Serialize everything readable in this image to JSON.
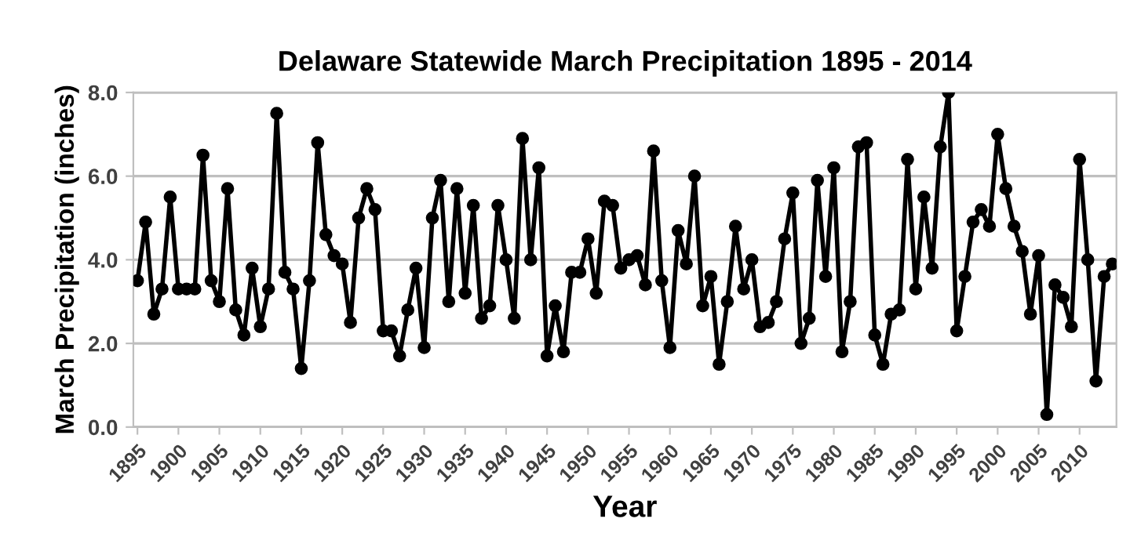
{
  "chart_data": {
    "type": "line",
    "title": "Delaware Statewide March Precipitation 1895 - 2014",
    "xlabel": "Year",
    "ylabel": "March Precipitation (inches)",
    "x": [
      1895,
      1896,
      1897,
      1898,
      1899,
      1900,
      1901,
      1902,
      1903,
      1904,
      1905,
      1906,
      1907,
      1908,
      1909,
      1910,
      1911,
      1912,
      1913,
      1914,
      1915,
      1916,
      1917,
      1918,
      1919,
      1920,
      1921,
      1922,
      1923,
      1924,
      1925,
      1926,
      1927,
      1928,
      1929,
      1930,
      1931,
      1932,
      1933,
      1934,
      1935,
      1936,
      1937,
      1938,
      1939,
      1940,
      1941,
      1942,
      1943,
      1944,
      1945,
      1946,
      1947,
      1948,
      1949,
      1950,
      1951,
      1952,
      1953,
      1954,
      1955,
      1956,
      1957,
      1958,
      1959,
      1960,
      1961,
      1962,
      1963,
      1964,
      1965,
      1966,
      1967,
      1968,
      1969,
      1970,
      1971,
      1972,
      1973,
      1974,
      1975,
      1976,
      1977,
      1978,
      1979,
      1980,
      1981,
      1982,
      1983,
      1984,
      1985,
      1986,
      1987,
      1988,
      1989,
      1990,
      1991,
      1992,
      1993,
      1994,
      1995,
      1996,
      1997,
      1998,
      1999,
      2000,
      2001,
      2002,
      2003,
      2004,
      2005,
      2006,
      2007,
      2008,
      2009,
      2010,
      2011,
      2012,
      2013,
      2014
    ],
    "series": [
      {
        "color": "#000000",
        "values": [
          3.5,
          4.9,
          2.7,
          3.3,
          5.5,
          3.3,
          3.3,
          3.3,
          6.5,
          3.5,
          3.0,
          5.7,
          2.8,
          2.2,
          3.8,
          2.4,
          3.3,
          7.5,
          3.7,
          3.3,
          1.4,
          3.5,
          6.8,
          4.6,
          4.1,
          3.9,
          2.5,
          5.0,
          5.7,
          5.2,
          2.3,
          2.3,
          1.7,
          2.8,
          3.8,
          1.9,
          5.0,
          5.9,
          3.0,
          5.7,
          3.2,
          5.3,
          2.6,
          2.9,
          5.3,
          4.0,
          2.6,
          6.9,
          4.0,
          6.2,
          1.7,
          2.9,
          1.8,
          3.7,
          3.7,
          4.5,
          3.2,
          5.4,
          5.3,
          3.8,
          4.0,
          4.1,
          3.4,
          6.6,
          3.5,
          1.9,
          4.7,
          3.9,
          6.0,
          2.9,
          3.6,
          1.5,
          3.0,
          4.8,
          3.3,
          4.0,
          2.4,
          2.5,
          3.0,
          4.5,
          5.6,
          2.0,
          2.6,
          5.9,
          3.6,
          6.2,
          1.8,
          3.0,
          6.7,
          6.8,
          2.2,
          1.5,
          2.7,
          2.8,
          6.4,
          3.3,
          5.5,
          3.8,
          6.7,
          8.0,
          2.3,
          3.6,
          4.9,
          5.2,
          4.8,
          7.0,
          5.7,
          4.8,
          4.2,
          2.7,
          4.1,
          0.3,
          3.4,
          3.1,
          2.4,
          6.4,
          4.0,
          1.1,
          3.6,
          3.9
        ]
      }
    ],
    "xlim": [
      1894.5,
      2014.5
    ],
    "xticks": [
      1895,
      1900,
      1905,
      1910,
      1915,
      1920,
      1925,
      1930,
      1935,
      1940,
      1945,
      1950,
      1955,
      1960,
      1965,
      1970,
      1975,
      1980,
      1985,
      1990,
      1995,
      2000,
      2005,
      2010
    ],
    "ylim": [
      0,
      8
    ],
    "yticks": [
      {
        "value": 0,
        "label": "0.0"
      },
      {
        "value": 2,
        "label": "2.0"
      },
      {
        "value": 4,
        "label": "4.0"
      },
      {
        "value": 6,
        "label": "6.0"
      },
      {
        "value": 8,
        "label": "8.0"
      }
    ],
    "grid": "y",
    "legend": false,
    "marker": "circle",
    "line_style": "solid"
  }
}
